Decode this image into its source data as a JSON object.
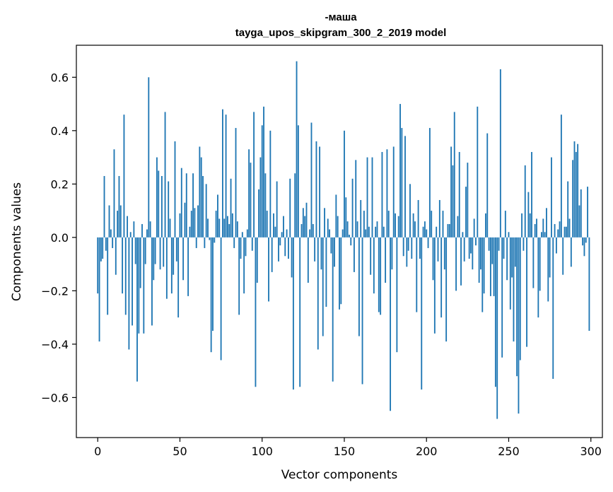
{
  "chart_data": {
    "type": "bar",
    "title_line1": "-маша",
    "title_line2": "tayga_upos_skipgram_300_2_2019 model",
    "xlabel": "Vector components",
    "ylabel": "Components values",
    "xlim": [
      -13,
      307
    ],
    "ylim": [
      -0.75,
      0.72
    ],
    "xticks": [
      0,
      50,
      100,
      150,
      200,
      250,
      300
    ],
    "xtick_labels": [
      "0",
      "50",
      "100",
      "150",
      "200",
      "250",
      "300"
    ],
    "yticks": [
      -0.6,
      -0.4,
      -0.2,
      0.0,
      0.2,
      0.4,
      0.6
    ],
    "ytick_labels": [
      "−0.6",
      "−0.4",
      "−0.2",
      "0.0",
      "0.2",
      "0.4",
      "0.6"
    ],
    "bar_color": "#1f77b4",
    "values": [
      -0.21,
      -0.39,
      -0.09,
      -0.08,
      0.23,
      -0.05,
      -0.29,
      0.12,
      0.03,
      -0.04,
      0.33,
      -0.14,
      0.1,
      0.23,
      0.12,
      -0.21,
      0.46,
      -0.29,
      0.08,
      -0.42,
      0.02,
      -0.33,
      0.06,
      -0.1,
      -0.54,
      -0.36,
      -0.19,
      0.05,
      -0.36,
      -0.1,
      0.03,
      0.6,
      0.06,
      -0.33,
      -0.16,
      -0.1,
      0.3,
      0.25,
      -0.12,
      0.23,
      -0.11,
      0.47,
      -0.23,
      0.21,
      0.07,
      -0.21,
      -0.14,
      0.36,
      -0.09,
      -0.3,
      0.09,
      0.26,
      -0.16,
      0.13,
      0.24,
      -0.22,
      0.04,
      0.1,
      0.24,
      0.11,
      -0.04,
      0.12,
      0.34,
      0.3,
      0.23,
      -0.04,
      0.2,
      0.07,
      -0.01,
      -0.43,
      -0.35,
      -0.02,
      0.1,
      0.16,
      0.07,
      -0.46,
      0.48,
      0.07,
      0.46,
      0.08,
      0.05,
      0.22,
      0.09,
      -0.04,
      0.41,
      0.06,
      -0.29,
      -0.08,
      0.02,
      -0.21,
      -0.07,
      0.03,
      0.33,
      0.28,
      -0.05,
      0.47,
      -0.56,
      -0.17,
      0.18,
      0.3,
      0.42,
      0.49,
      0.24,
      0.1,
      -0.24,
      0.4,
      -0.13,
      0.09,
      0.04,
      0.21,
      -0.09,
      -0.03,
      0.02,
      0.08,
      -0.07,
      0.03,
      -0.08,
      0.22,
      -0.15,
      -0.57,
      0.24,
      0.66,
      0.42,
      -0.56,
      0.05,
      0.11,
      0.08,
      0.13,
      -0.17,
      0.03,
      0.43,
      0.05,
      -0.09,
      0.36,
      -0.42,
      0.34,
      -0.12,
      -0.37,
      0.11,
      -0.26,
      0.07,
      0.03,
      -0.06,
      -0.54,
      -0.11,
      0.16,
      0.08,
      -0.27,
      -0.25,
      0.03,
      0.4,
      0.15,
      0.06,
      0.01,
      -0.03,
      0.22,
      -0.13,
      0.29,
      0.06,
      -0.37,
      0.14,
      -0.55,
      0.1,
      0.03,
      0.3,
      0.04,
      -0.14,
      0.3,
      -0.21,
      0.04,
      0.06,
      -0.28,
      -0.29,
      0.32,
      0.04,
      -0.17,
      0.33,
      0.1,
      -0.65,
      -0.12,
      0.34,
      0.09,
      -0.43,
      0.08,
      0.5,
      0.41,
      -0.07,
      0.38,
      -0.11,
      -0.05,
      0.2,
      -0.08,
      0.09,
      0.06,
      -0.28,
      0.14,
      -0.08,
      -0.57,
      0.04,
      0.06,
      0.03,
      -0.04,
      0.41,
      0.1,
      -0.16,
      -0.36,
      0.04,
      -0.09,
      0.14,
      -0.3,
      0.1,
      -0.12,
      -0.39,
      0.05,
      0.05,
      0.34,
      0.27,
      0.47,
      -0.2,
      0.08,
      0.32,
      -0.18,
      0.02,
      -0.09,
      0.19,
      0.28,
      -0.08,
      -0.06,
      -0.12,
      0.07,
      -0.03,
      0.49,
      -0.17,
      -0.12,
      -0.28,
      -0.21,
      0.09,
      0.39,
      -0.05,
      -0.22,
      -0.1,
      -0.22,
      -0.56,
      -0.68,
      -0.05,
      0.63,
      -0.45,
      -0.08,
      0.1,
      -0.16,
      0.02,
      -0.27,
      -0.15,
      -0.39,
      -0.11,
      -0.52,
      -0.66,
      -0.46,
      0.09,
      -0.05,
      0.27,
      -0.41,
      0.17,
      0.09,
      0.32,
      -0.19,
      0.05,
      0.07,
      -0.3,
      -0.2,
      0.02,
      0.07,
      0.02,
      0.11,
      -0.24,
      -0.15,
      0.3,
      -0.53,
      0.05,
      -0.06,
      0.03,
      0.06,
      0.46,
      -0.14,
      0.04,
      0.04,
      0.21,
      0.07,
      -0.11,
      0.29,
      0.36,
      0.32,
      0.35,
      0.12,
      0.18,
      -0.03,
      -0.07,
      -0.02,
      0.19,
      -0.35
    ]
  }
}
